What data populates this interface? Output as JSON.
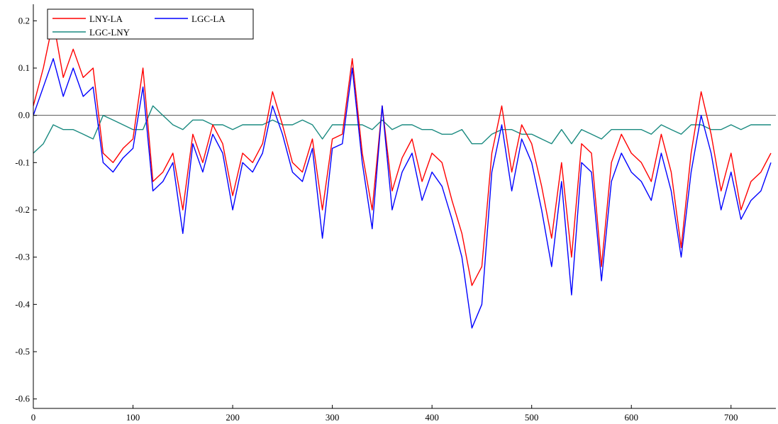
{
  "chart_data": {
    "type": "line",
    "title": "",
    "xlabel": "",
    "ylabel": "",
    "xlim": [
      0,
      745
    ],
    "ylim": [
      -0.62,
      0.235
    ],
    "x_ticks": [
      0,
      100,
      200,
      300,
      400,
      500,
      600,
      700
    ],
    "x_tick_labels": [
      "0",
      "100",
      "200",
      "300",
      "400",
      "500",
      "600",
      "700"
    ],
    "y_ticks": [
      0.2,
      0.1,
      0.0,
      -0.1,
      -0.2,
      -0.3,
      -0.4,
      -0.5,
      -0.6
    ],
    "y_tick_labels": [
      "0.2",
      "0.1",
      "0.0",
      "-0.1",
      "-0.2",
      "-0.3",
      "-0.4",
      "-0.5",
      "-0.6"
    ],
    "zero_line": 0.0,
    "grid": false,
    "legend_position": "top-left",
    "x": [
      0,
      10,
      20,
      30,
      40,
      50,
      60,
      70,
      80,
      90,
      100,
      110,
      120,
      130,
      140,
      150,
      160,
      170,
      180,
      190,
      200,
      210,
      220,
      230,
      240,
      250,
      260,
      270,
      280,
      290,
      300,
      310,
      320,
      330,
      340,
      350,
      360,
      370,
      380,
      390,
      400,
      410,
      420,
      430,
      440,
      450,
      460,
      470,
      480,
      490,
      500,
      510,
      520,
      530,
      540,
      550,
      560,
      570,
      580,
      590,
      600,
      610,
      620,
      630,
      640,
      650,
      660,
      670,
      680,
      690,
      700,
      710,
      720,
      730,
      740
    ],
    "series": [
      {
        "name": "LNY-LA",
        "color": "#ff0000",
        "values": [
          0.02,
          0.1,
          0.2,
          0.08,
          0.14,
          0.08,
          0.1,
          -0.08,
          -0.1,
          -0.07,
          -0.05,
          0.1,
          -0.14,
          -0.12,
          -0.08,
          -0.2,
          -0.04,
          -0.1,
          -0.02,
          -0.06,
          -0.17,
          -0.08,
          -0.1,
          -0.06,
          0.05,
          -0.02,
          -0.1,
          -0.12,
          -0.05,
          -0.2,
          -0.05,
          -0.04,
          0.12,
          -0.08,
          -0.2,
          0.02,
          -0.16,
          -0.09,
          -0.05,
          -0.14,
          -0.08,
          -0.1,
          -0.18,
          -0.25,
          -0.36,
          -0.32,
          -0.08,
          0.02,
          -0.12,
          -0.02,
          -0.06,
          -0.15,
          -0.26,
          -0.1,
          -0.3,
          -0.06,
          -0.08,
          -0.32,
          -0.1,
          -0.04,
          -0.08,
          -0.1,
          -0.14,
          -0.04,
          -0.12,
          -0.28,
          -0.08,
          0.05,
          -0.04,
          -0.16,
          -0.08,
          -0.2,
          -0.14,
          -0.12,
          -0.08
        ]
      },
      {
        "name": "LGC-LA",
        "color": "#0000ff",
        "values": [
          0.0,
          0.06,
          0.12,
          0.04,
          0.1,
          0.04,
          0.06,
          -0.1,
          -0.12,
          -0.09,
          -0.07,
          0.06,
          -0.16,
          -0.14,
          -0.1,
          -0.25,
          -0.06,
          -0.12,
          -0.04,
          -0.08,
          -0.2,
          -0.1,
          -0.12,
          -0.08,
          0.02,
          -0.04,
          -0.12,
          -0.14,
          -0.07,
          -0.26,
          -0.07,
          -0.06,
          0.1,
          -0.1,
          -0.24,
          0.02,
          -0.2,
          -0.12,
          -0.08,
          -0.18,
          -0.12,
          -0.15,
          -0.22,
          -0.3,
          -0.45,
          -0.4,
          -0.12,
          -0.02,
          -0.16,
          -0.05,
          -0.1,
          -0.2,
          -0.32,
          -0.14,
          -0.38,
          -0.1,
          -0.12,
          -0.35,
          -0.14,
          -0.08,
          -0.12,
          -0.14,
          -0.18,
          -0.08,
          -0.16,
          -0.3,
          -0.12,
          0.0,
          -0.08,
          -0.2,
          -0.12,
          -0.22,
          -0.18,
          -0.16,
          -0.1
        ]
      },
      {
        "name": "LGC-LNY",
        "color": "#1a8a80",
        "values": [
          -0.08,
          -0.06,
          -0.02,
          -0.03,
          -0.03,
          -0.04,
          -0.05,
          0.0,
          -0.01,
          -0.02,
          -0.03,
          -0.03,
          0.02,
          0.0,
          -0.02,
          -0.03,
          -0.01,
          -0.01,
          -0.02,
          -0.02,
          -0.03,
          -0.02,
          -0.02,
          -0.02,
          -0.01,
          -0.02,
          -0.02,
          -0.01,
          -0.02,
          -0.05,
          -0.02,
          -0.02,
          -0.02,
          -0.02,
          -0.03,
          -0.01,
          -0.03,
          -0.02,
          -0.02,
          -0.03,
          -0.03,
          -0.04,
          -0.04,
          -0.03,
          -0.06,
          -0.06,
          -0.04,
          -0.03,
          -0.03,
          -0.04,
          -0.04,
          -0.05,
          -0.06,
          -0.03,
          -0.06,
          -0.03,
          -0.04,
          -0.05,
          -0.03,
          -0.03,
          -0.03,
          -0.03,
          -0.04,
          -0.02,
          -0.03,
          -0.04,
          -0.02,
          -0.02,
          -0.03,
          -0.03,
          -0.02,
          -0.03,
          -0.02,
          -0.02,
          -0.02
        ]
      }
    ]
  }
}
